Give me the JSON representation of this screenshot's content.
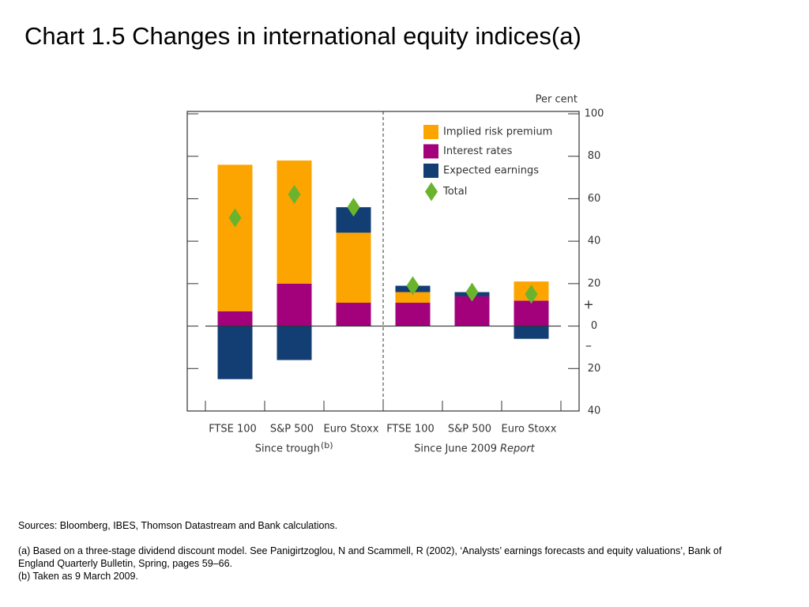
{
  "chart_data": {
    "type": "bar",
    "title": "Chart 1.5  Changes in international equity indices(a)",
    "y_label": "Per cent",
    "annotations": [
      "+",
      "–"
    ],
    "categories": [
      "FTSE 100",
      "S&P 500",
      "Euro Stoxx",
      "FTSE 100",
      "S&P 500",
      "Euro Stoxx"
    ],
    "groups": [
      {
        "label": "Since trough",
        "note": "(b)"
      },
      {
        "label": "Since June 2009",
        "note": "Report"
      }
    ],
    "series": [
      {
        "name": "Implied risk premium",
        "color": "#fca400",
        "values": [
          69,
          58,
          33,
          5,
          0,
          9
        ]
      },
      {
        "name": "Interest rates",
        "color": "#a3007c",
        "values": [
          7,
          20,
          11,
          11,
          14,
          12
        ]
      },
      {
        "name": "Expected earnings",
        "color": "#123e74",
        "values": [
          -25,
          -16,
          12,
          3,
          2,
          -6
        ]
      },
      {
        "name": "Total",
        "color": "#6ab42d",
        "type": "marker",
        "values": [
          51,
          62,
          56,
          19,
          16,
          15
        ]
      }
    ],
    "ylim": [
      -40,
      100
    ],
    "yticks": [
      100,
      80,
      60,
      40,
      20,
      0,
      {
        "value": -20,
        "label": "20"
      },
      {
        "value": -40,
        "label": "40"
      }
    ],
    "stacked": true,
    "notes": [
      "Sources:  Bloomberg, IBES, Thomson Datastream and Bank calculations.",
      "(a)  Based on a three-stage dividend discount model.  See Panigirtzoglou, N and Scammell, R (2002), ‘Analysts’ earnings forecasts and equity valuations’, Bank of England Quarterly Bulletin, Spring, pages 59–66.",
      "(b)  Taken as 9 March 2009."
    ]
  }
}
